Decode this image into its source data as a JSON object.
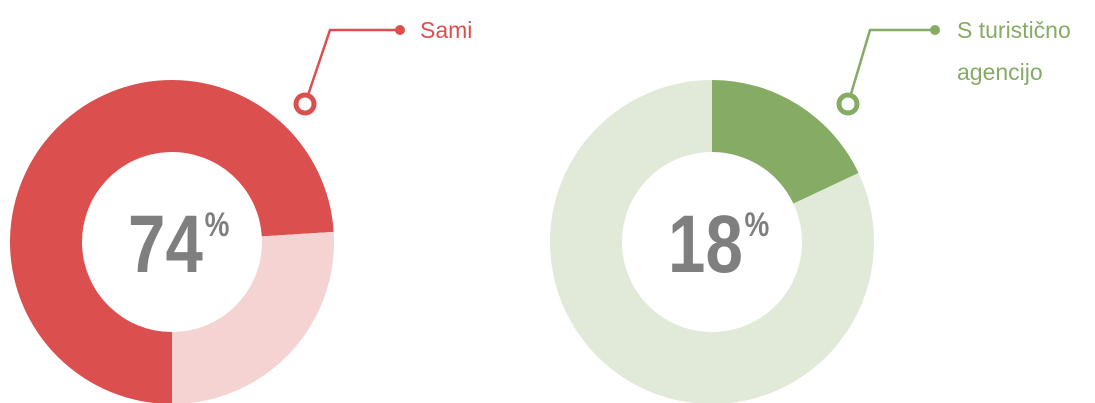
{
  "chart_data": [
    {
      "type": "donut",
      "categories": [
        "Sami",
        null
      ],
      "values": [
        74,
        26
      ],
      "colors": [
        "#dc4f4f",
        "#f6d3d3"
      ],
      "start_angle": 180,
      "unit": "%"
    },
    {
      "type": "donut",
      "categories": [
        "S turistično agencijo",
        null
      ],
      "values": [
        18,
        82
      ],
      "colors": [
        "#86ab65",
        "#e1ead8"
      ],
      "start_angle": 0,
      "unit": "%"
    }
  ]
}
